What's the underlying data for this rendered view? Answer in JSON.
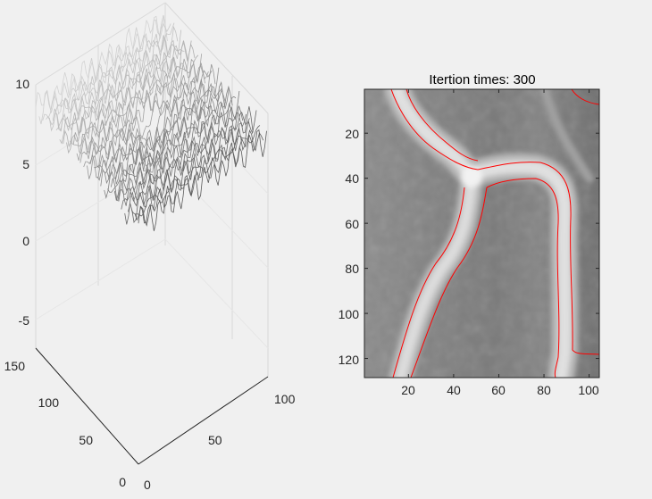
{
  "chart_data": [
    {
      "type": "surface",
      "title": "",
      "xlabel": "",
      "ylabel": "",
      "zlabel": "",
      "x_ticks": [
        "0",
        "50",
        "100"
      ],
      "y_ticks": [
        "0",
        "50",
        "100",
        "150"
      ],
      "z_ticks": [
        "10",
        "5",
        "0",
        "-5"
      ],
      "xlim": [
        0,
        100
      ],
      "ylim": [
        0,
        150
      ],
      "zlim": [
        -7,
        10
      ],
      "colormap": "gray",
      "grid": true
    },
    {
      "type": "heatmap",
      "title": "Itertion times: 300",
      "xlabel": "",
      "ylabel": "",
      "x_ticks": [
        "20",
        "40",
        "60",
        "80",
        "100"
      ],
      "y_ticks": [
        "20",
        "40",
        "60",
        "80",
        "100",
        "120"
      ],
      "xlim": [
        0.5,
        104.5
      ],
      "ylim": [
        0.5,
        128.5
      ],
      "colormap": "gray",
      "contour_color": "#ff0000"
    }
  ]
}
